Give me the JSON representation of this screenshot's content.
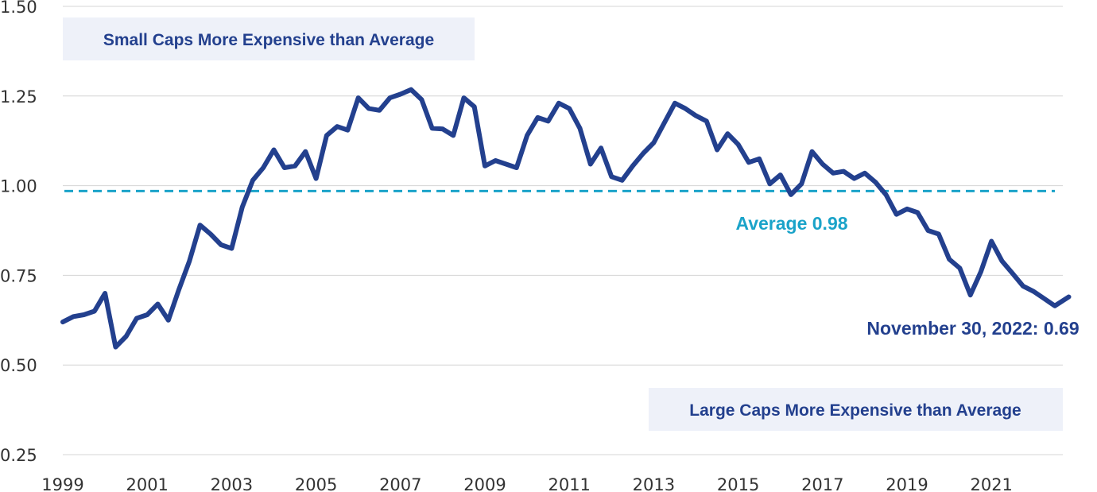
{
  "chart_data": {
    "type": "line",
    "ylim": [
      0.25,
      1.5
    ],
    "yticks": [
      "0.25",
      "0.50",
      "0.75",
      "1.00",
      "1.25",
      "1.50"
    ],
    "xticks": [
      "1999",
      "2001",
      "2003",
      "2005",
      "2007",
      "2009",
      "2011",
      "2013",
      "2015",
      "2017",
      "2019",
      "2021"
    ],
    "grid": true,
    "colors": {
      "line": "#23408e",
      "average": "#1aa3c9",
      "box_fill": "#eef1f9",
      "grid": "#d4d4d4"
    },
    "series": [
      {
        "x": [
          "1999-01",
          "1999-04",
          "1999-07",
          "1999-10",
          "2000-01",
          "2000-04",
          "2000-07",
          "2000-10",
          "2001-01",
          "2001-04",
          "2001-07",
          "2001-10",
          "2002-01",
          "2002-04",
          "2002-07",
          "2002-10",
          "2003-01",
          "2003-04",
          "2003-07",
          "2003-10",
          "2004-01",
          "2004-04",
          "2004-07",
          "2004-10",
          "2005-01",
          "2005-04",
          "2005-07",
          "2005-10",
          "2006-01",
          "2006-04",
          "2006-07",
          "2006-10",
          "2007-01",
          "2007-04",
          "2007-07",
          "2007-10",
          "2008-01",
          "2008-04",
          "2008-07",
          "2008-10",
          "2009-01",
          "2009-04",
          "2009-07",
          "2009-10",
          "2010-01",
          "2010-04",
          "2010-07",
          "2010-10",
          "2011-01",
          "2011-04",
          "2011-07",
          "2011-10",
          "2012-01",
          "2012-04",
          "2012-07",
          "2012-10",
          "2013-01",
          "2013-04",
          "2013-07",
          "2013-10",
          "2014-01",
          "2014-04",
          "2014-07",
          "2014-10",
          "2015-01",
          "2015-04",
          "2015-07",
          "2015-10",
          "2016-01",
          "2016-04",
          "2016-07",
          "2016-10",
          "2017-01",
          "2017-04",
          "2017-07",
          "2017-10",
          "2018-01",
          "2018-04",
          "2018-07",
          "2018-10",
          "2019-01",
          "2019-04",
          "2019-07",
          "2019-10",
          "2020-01",
          "2020-04",
          "2020-07",
          "2020-10",
          "2021-01",
          "2021-04",
          "2021-07",
          "2021-10",
          "2022-01",
          "2022-04",
          "2022-07",
          "2022-11"
        ],
        "values": [
          0.62,
          0.635,
          0.64,
          0.65,
          0.7,
          0.55,
          0.58,
          0.63,
          0.64,
          0.67,
          0.625,
          0.71,
          0.79,
          0.89,
          0.865,
          0.835,
          0.825,
          0.94,
          1.015,
          1.05,
          1.1,
          1.05,
          1.055,
          1.095,
          1.02,
          1.14,
          1.165,
          1.155,
          1.245,
          1.215,
          1.21,
          1.245,
          1.255,
          1.268,
          1.24,
          1.16,
          1.158,
          1.14,
          1.245,
          1.22,
          1.055,
          1.07,
          1.06,
          1.05,
          1.14,
          1.19,
          1.18,
          1.23,
          1.215,
          1.16,
          1.06,
          1.105,
          1.025,
          1.015,
          1.055,
          1.09,
          1.12,
          1.175,
          1.23,
          1.215,
          1.195,
          1.18,
          1.1,
          1.145,
          1.115,
          1.065,
          1.075,
          1.005,
          1.03,
          0.975,
          1.005,
          1.095,
          1.06,
          1.035,
          1.04,
          1.02,
          1.035,
          1.01,
          0.975,
          0.92,
          0.935,
          0.925,
          0.875,
          0.865,
          0.795,
          0.77,
          0.695,
          0.76,
          0.845,
          0.79,
          0.755,
          0.72,
          0.705,
          0.685,
          0.665,
          0.69
        ]
      }
    ],
    "average": {
      "value": 0.985,
      "label": "Average 0.98"
    },
    "end_label": "November 30, 2022: 0.69",
    "annotations": {
      "top_box": "Small Caps More Expensive than Average",
      "bottom_box": "Large Caps More Expensive than Average"
    }
  }
}
